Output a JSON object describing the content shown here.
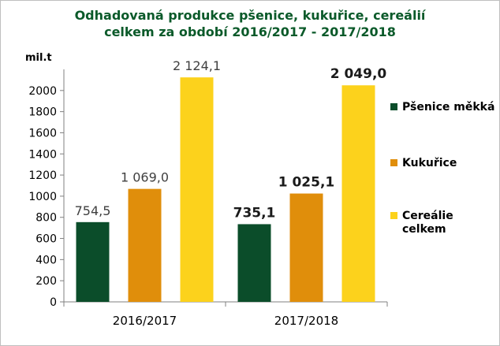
{
  "chart_data": {
    "type": "bar",
    "title_lines": [
      "Odhadovaná produkce  pšenice, kukuřice, cereálií",
      "celkem za období  2016/2017 - 2017/2018"
    ],
    "ylabel": "mil.t",
    "ylim": [
      0,
      2200
    ],
    "yticks": [
      0,
      200,
      400,
      600,
      800,
      1000,
      1200,
      1400,
      1600,
      1800,
      2000
    ],
    "categories": [
      "2016/2017",
      "2017/2018"
    ],
    "series": [
      {
        "name": "Pšenice měkká",
        "color": "#0b4d2a",
        "values": [
          754.5,
          735.1
        ]
      },
      {
        "name": "Kukuřice",
        "color": "#e08e0b",
        "values": [
          1069.0,
          1025.1
        ]
      },
      {
        "name": "Cereálie celkem",
        "legend_lines": [
          "Cereálie",
          "celkem"
        ],
        "color": "#fcd21c",
        "values": [
          2124.1,
          2049.0
        ]
      }
    ],
    "data_labels": [
      [
        "754,5",
        "1 069,0",
        "2 124,1"
      ],
      [
        "735,1",
        "1 025,1",
        "2 049,0"
      ]
    ],
    "legend_position": "right",
    "grid": false
  }
}
